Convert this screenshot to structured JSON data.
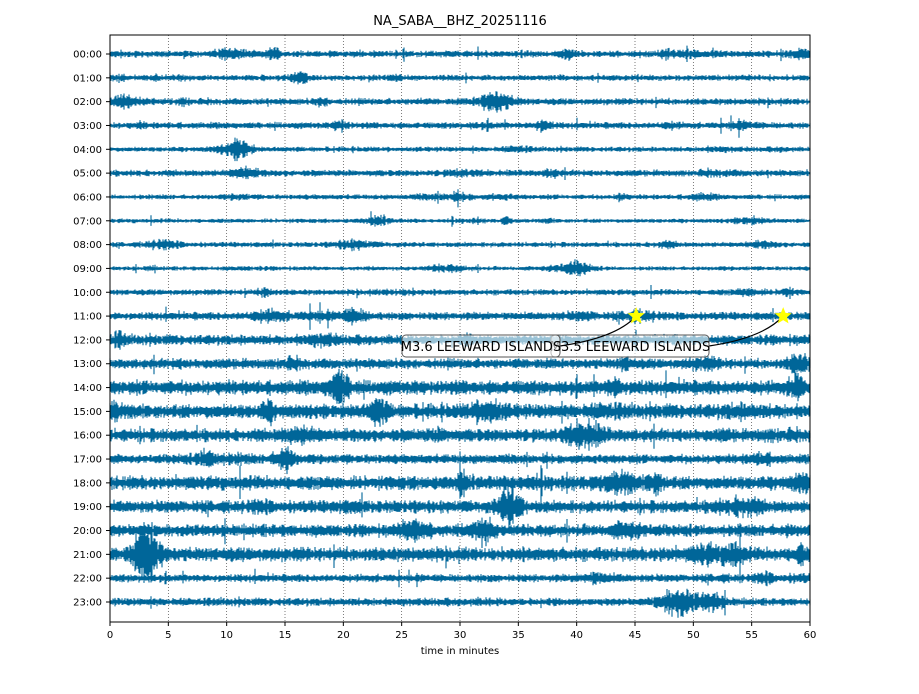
{
  "chart_data": {
    "type": "line",
    "title": "NA_SABA__BHZ_20251116",
    "xlabel": "time in minutes",
    "ylabel": "",
    "xlim": [
      0,
      60
    ],
    "x_ticks": [
      "0",
      "5",
      "10",
      "15",
      "20",
      "25",
      "30",
      "35",
      "40",
      "45",
      "50",
      "55",
      "60"
    ],
    "x_tick_values": [
      0,
      5,
      10,
      15,
      20,
      25,
      30,
      35,
      40,
      45,
      50,
      55,
      60
    ],
    "grid": "vertical dotted",
    "rows": [
      "00:00",
      "01:00",
      "02:00",
      "03:00",
      "04:00",
      "05:00",
      "06:00",
      "07:00",
      "08:00",
      "09:00",
      "10:00",
      "11:00",
      "12:00",
      "13:00",
      "14:00",
      "15:00",
      "16:00",
      "17:00",
      "18:00",
      "19:00",
      "20:00",
      "21:00",
      "22:00",
      "23:00"
    ],
    "row_relative_noise": [
      0.45,
      0.4,
      0.45,
      0.45,
      0.35,
      0.45,
      0.35,
      0.3,
      0.35,
      0.3,
      0.4,
      0.55,
      0.7,
      0.7,
      1.0,
      1.0,
      0.9,
      0.65,
      0.95,
      0.85,
      0.85,
      0.95,
      0.55,
      0.55
    ],
    "trace_color": "#006699",
    "events": [
      {
        "label": "M3.5 LEEWARD ISLANDS",
        "row": "11:00",
        "minute": 57.7,
        "marker_color": "#ffff00"
      },
      {
        "label": "M3.6 LEEWARD ISLANDS",
        "row": "11:00",
        "minute": 45.1,
        "marker_color": "#ffff00"
      }
    ]
  }
}
